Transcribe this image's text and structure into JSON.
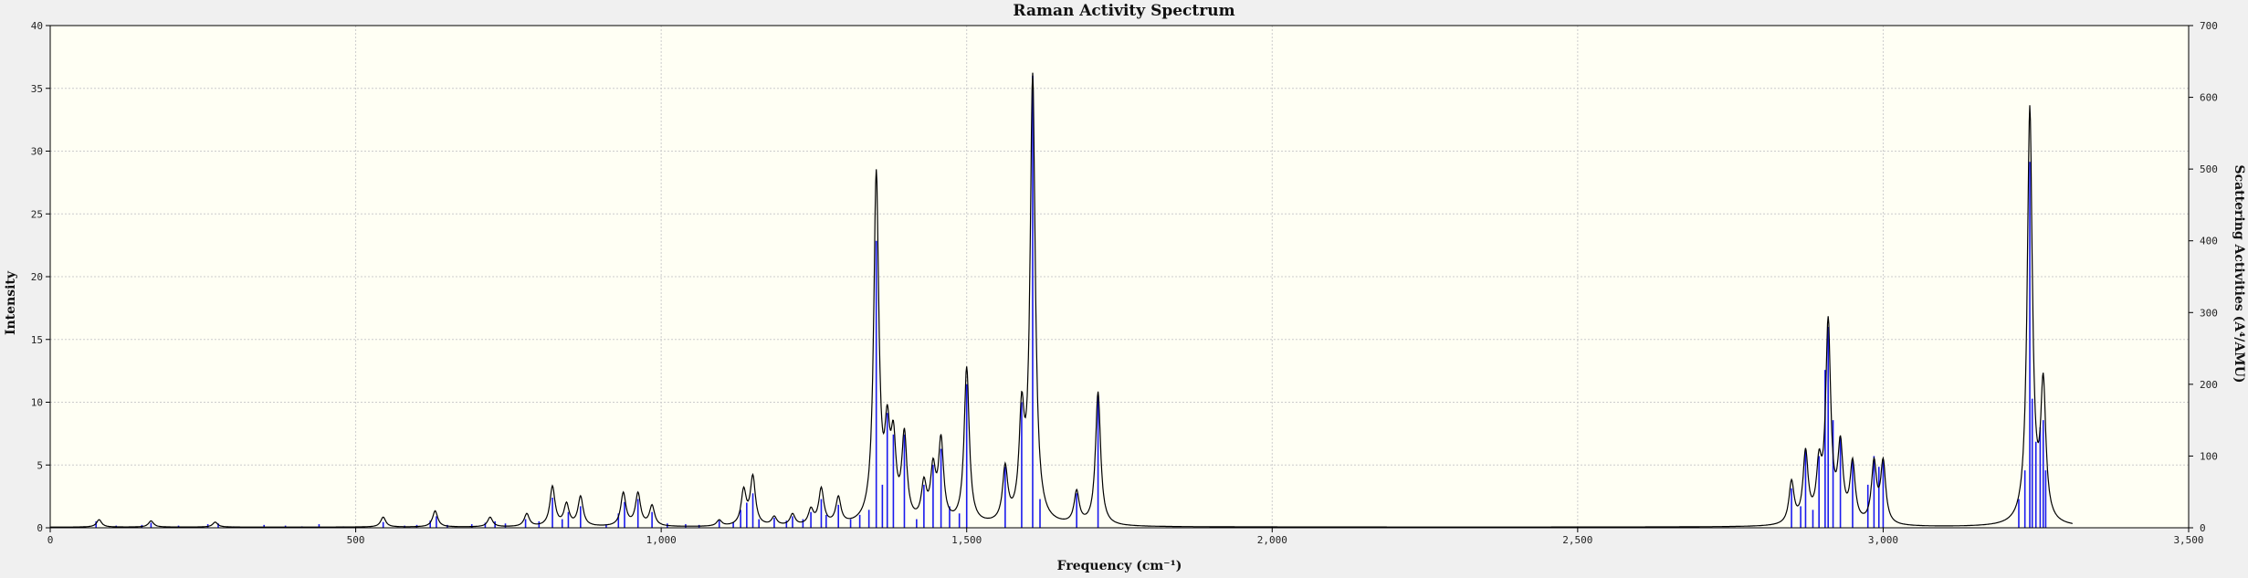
{
  "chart_data": {
    "type": "line",
    "title": "Raman Activity Spectrum",
    "xlabel": "Frequency (cm⁻¹)",
    "ylabel": "Intensity",
    "y2label": "Scattering Activities (A⁴/AMU)",
    "xlim": [
      0,
      3500
    ],
    "ylim": [
      0,
      40
    ],
    "y2lim": [
      0,
      700
    ],
    "x_ticks": [
      0,
      500,
      1000,
      1500,
      2000,
      2500,
      3000,
      3500
    ],
    "x_tick_labels": [
      "0",
      "500",
      "1,000",
      "1,500",
      "2,000",
      "2,500",
      "3,000",
      "3,500"
    ],
    "y_ticks": [
      0,
      5,
      10,
      15,
      20,
      25,
      30,
      35,
      40
    ],
    "y2_ticks": [
      0,
      100,
      200,
      300,
      400,
      500,
      600,
      700
    ],
    "grid": true,
    "spectrum_range": [
      0,
      3310
    ],
    "colors": {
      "plot_background": "#fffff4",
      "curve": "#000000",
      "sticks": "#1a1aee",
      "grid": "#cccccc"
    },
    "series": [
      {
        "kind": "spectrum_curve",
        "description_peaks": [
          {
            "x": 80,
            "y": 0.6
          },
          {
            "x": 165,
            "y": 0.5
          },
          {
            "x": 270,
            "y": 0.4
          },
          {
            "x": 545,
            "y": 0.8
          },
          {
            "x": 630,
            "y": 1.3
          },
          {
            "x": 720,
            "y": 0.8
          },
          {
            "x": 780,
            "y": 1.1
          },
          {
            "x": 822,
            "y": 3.3
          },
          {
            "x": 845,
            "y": 2.0
          },
          {
            "x": 868,
            "y": 2.5
          },
          {
            "x": 938,
            "y": 2.8
          },
          {
            "x": 962,
            "y": 2.8
          },
          {
            "x": 985,
            "y": 1.8
          },
          {
            "x": 1095,
            "y": 0.6
          },
          {
            "x": 1135,
            "y": 3.2
          },
          {
            "x": 1150,
            "y": 4.2
          },
          {
            "x": 1185,
            "y": 0.9
          },
          {
            "x": 1215,
            "y": 1.1
          },
          {
            "x": 1245,
            "y": 1.6
          },
          {
            "x": 1262,
            "y": 3.2
          },
          {
            "x": 1290,
            "y": 2.5
          },
          {
            "x": 1335,
            "y": 1.5
          },
          {
            "x": 1352,
            "y": 28.5
          },
          {
            "x": 1370,
            "y": 9.8
          },
          {
            "x": 1380,
            "y": 8.5
          },
          {
            "x": 1398,
            "y": 7.9
          },
          {
            "x": 1430,
            "y": 4.0
          },
          {
            "x": 1445,
            "y": 5.5
          },
          {
            "x": 1458,
            "y": 7.4
          },
          {
            "x": 1500,
            "y": 12.8
          },
          {
            "x": 1563,
            "y": 5.1
          },
          {
            "x": 1590,
            "y": 10.8
          },
          {
            "x": 1608,
            "y": 36.2
          },
          {
            "x": 1680,
            "y": 3.0
          },
          {
            "x": 1715,
            "y": 10.8
          },
          {
            "x": 2850,
            "y": 3.8
          },
          {
            "x": 2873,
            "y": 6.3
          },
          {
            "x": 2895,
            "y": 6.2
          },
          {
            "x": 2910,
            "y": 16.8
          },
          {
            "x": 2930,
            "y": 7.3
          },
          {
            "x": 2950,
            "y": 5.5
          },
          {
            "x": 2985,
            "y": 5.5
          },
          {
            "x": 3000,
            "y": 5.5
          },
          {
            "x": 3240,
            "y": 33.6
          },
          {
            "x": 3262,
            "y": 12.3
          }
        ]
      },
      {
        "kind": "activity_sticks",
        "sticks": [
          {
            "x": 55,
            "a": 2
          },
          {
            "x": 75,
            "a": 9
          },
          {
            "x": 108,
            "a": 3
          },
          {
            "x": 150,
            "a": 4
          },
          {
            "x": 165,
            "a": 7
          },
          {
            "x": 210,
            "a": 3
          },
          {
            "x": 258,
            "a": 5
          },
          {
            "x": 275,
            "a": 6
          },
          {
            "x": 300,
            "a": 2
          },
          {
            "x": 350,
            "a": 4
          },
          {
            "x": 385,
            "a": 3
          },
          {
            "x": 412,
            "a": 2
          },
          {
            "x": 440,
            "a": 5
          },
          {
            "x": 480,
            "a": 2
          },
          {
            "x": 545,
            "a": 8
          },
          {
            "x": 580,
            "a": 3
          },
          {
            "x": 600,
            "a": 4
          },
          {
            "x": 622,
            "a": 10
          },
          {
            "x": 632,
            "a": 16
          },
          {
            "x": 650,
            "a": 4
          },
          {
            "x": 690,
            "a": 5
          },
          {
            "x": 712,
            "a": 7
          },
          {
            "x": 728,
            "a": 9
          },
          {
            "x": 745,
            "a": 6
          },
          {
            "x": 778,
            "a": 12
          },
          {
            "x": 800,
            "a": 9
          },
          {
            "x": 822,
            "a": 42
          },
          {
            "x": 838,
            "a": 12
          },
          {
            "x": 848,
            "a": 22
          },
          {
            "x": 868,
            "a": 30
          },
          {
            "x": 910,
            "a": 5
          },
          {
            "x": 930,
            "a": 20
          },
          {
            "x": 940,
            "a": 36
          },
          {
            "x": 962,
            "a": 40
          },
          {
            "x": 985,
            "a": 22
          },
          {
            "x": 1010,
            "a": 6
          },
          {
            "x": 1040,
            "a": 5
          },
          {
            "x": 1062,
            "a": 4
          },
          {
            "x": 1095,
            "a": 10
          },
          {
            "x": 1118,
            "a": 8
          },
          {
            "x": 1130,
            "a": 25
          },
          {
            "x": 1140,
            "a": 35
          },
          {
            "x": 1150,
            "a": 48
          },
          {
            "x": 1160,
            "a": 12
          },
          {
            "x": 1185,
            "a": 14
          },
          {
            "x": 1205,
            "a": 10
          },
          {
            "x": 1215,
            "a": 16
          },
          {
            "x": 1232,
            "a": 12
          },
          {
            "x": 1245,
            "a": 22
          },
          {
            "x": 1262,
            "a": 40
          },
          {
            "x": 1270,
            "a": 18
          },
          {
            "x": 1290,
            "a": 32
          },
          {
            "x": 1310,
            "a": 12
          },
          {
            "x": 1325,
            "a": 18
          },
          {
            "x": 1340,
            "a": 25
          },
          {
            "x": 1352,
            "a": 400
          },
          {
            "x": 1362,
            "a": 60
          },
          {
            "x": 1370,
            "a": 160
          },
          {
            "x": 1380,
            "a": 130
          },
          {
            "x": 1398,
            "a": 130
          },
          {
            "x": 1418,
            "a": 12
          },
          {
            "x": 1430,
            "a": 60
          },
          {
            "x": 1445,
            "a": 88
          },
          {
            "x": 1458,
            "a": 110
          },
          {
            "x": 1472,
            "a": 30
          },
          {
            "x": 1488,
            "a": 20
          },
          {
            "x": 1500,
            "a": 200
          },
          {
            "x": 1563,
            "a": 85
          },
          {
            "x": 1590,
            "a": 175
          },
          {
            "x": 1608,
            "a": 630
          },
          {
            "x": 1620,
            "a": 40
          },
          {
            "x": 1680,
            "a": 48
          },
          {
            "x": 1715,
            "a": 185
          },
          {
            "x": 2850,
            "a": 55
          },
          {
            "x": 2865,
            "a": 30
          },
          {
            "x": 2873,
            "a": 110
          },
          {
            "x": 2885,
            "a": 25
          },
          {
            "x": 2895,
            "a": 100
          },
          {
            "x": 2905,
            "a": 220
          },
          {
            "x": 2910,
            "a": 280
          },
          {
            "x": 2918,
            "a": 150
          },
          {
            "x": 2930,
            "a": 125
          },
          {
            "x": 2950,
            "a": 95
          },
          {
            "x": 2975,
            "a": 60
          },
          {
            "x": 2985,
            "a": 100
          },
          {
            "x": 2993,
            "a": 85
          },
          {
            "x": 3000,
            "a": 95
          },
          {
            "x": 3222,
            "a": 40
          },
          {
            "x": 3232,
            "a": 80
          },
          {
            "x": 3240,
            "a": 510
          },
          {
            "x": 3244,
            "a": 180
          },
          {
            "x": 3250,
            "a": 120
          },
          {
            "x": 3257,
            "a": 140
          },
          {
            "x": 3262,
            "a": 150
          },
          {
            "x": 3266,
            "a": 80
          }
        ]
      }
    ]
  }
}
